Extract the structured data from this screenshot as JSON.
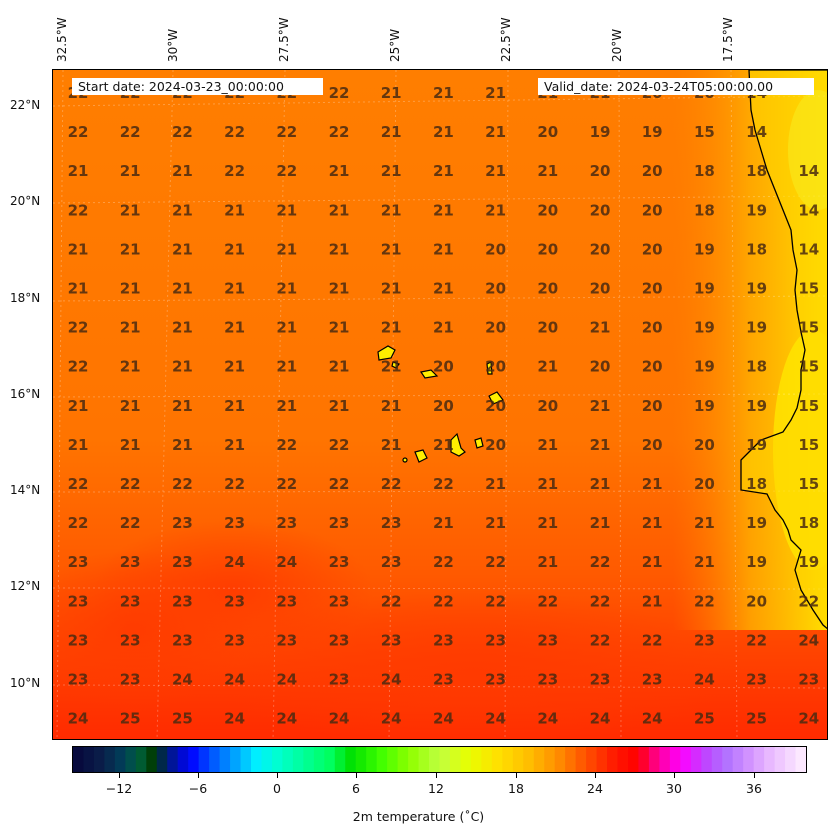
{
  "info": {
    "start_date": "Start date: 2024-03-23_00:00:00",
    "valid_date": "Valid_date: 2024-03-24T05:00:00.00"
  },
  "longitude_labels": [
    "32.5°W",
    "30°W",
    "27.5°W",
    "25°W",
    "22.5°W",
    "20°W",
    "17.5°W"
  ],
  "latitude_labels": [
    "22°N",
    "20°N",
    "18°N",
    "16°N",
    "14°N",
    "12°N",
    "10°N"
  ],
  "temperature_grid": [
    [
      "22",
      "22",
      "22",
      "22",
      "22",
      "22",
      "21",
      "21",
      "21",
      "21",
      "21",
      "20",
      "20",
      "14"
    ],
    [
      "22",
      "22",
      "22",
      "22",
      "22",
      "22",
      "21",
      "21",
      "21",
      "20",
      "19",
      "19",
      "15",
      "14"
    ],
    [
      "21",
      "21",
      "21",
      "22",
      "22",
      "21",
      "21",
      "21",
      "21",
      "21",
      "20",
      "20",
      "18",
      "18",
      "14"
    ],
    [
      "22",
      "21",
      "21",
      "21",
      "21",
      "21",
      "21",
      "21",
      "21",
      "20",
      "20",
      "20",
      "18",
      "19",
      "14"
    ],
    [
      "21",
      "21",
      "21",
      "21",
      "21",
      "21",
      "21",
      "21",
      "20",
      "20",
      "20",
      "20",
      "19",
      "18",
      "14"
    ],
    [
      "21",
      "21",
      "21",
      "21",
      "21",
      "21",
      "21",
      "21",
      "20",
      "20",
      "20",
      "20",
      "19",
      "19",
      "15"
    ],
    [
      "22",
      "21",
      "21",
      "21",
      "21",
      "21",
      "21",
      "21",
      "20",
      "20",
      "21",
      "20",
      "19",
      "19",
      "15"
    ],
    [
      "22",
      "21",
      "21",
      "21",
      "21",
      "21",
      "21",
      "20",
      "20",
      "21",
      "20",
      "20",
      "19",
      "18",
      "15"
    ],
    [
      "21",
      "21",
      "21",
      "21",
      "21",
      "21",
      "21",
      "20",
      "20",
      "20",
      "21",
      "20",
      "19",
      "19",
      "15"
    ],
    [
      "21",
      "21",
      "21",
      "21",
      "22",
      "22",
      "21",
      "21",
      "20",
      "21",
      "21",
      "20",
      "20",
      "19",
      "15"
    ],
    [
      "22",
      "22",
      "22",
      "22",
      "22",
      "22",
      "22",
      "22",
      "21",
      "21",
      "21",
      "21",
      "20",
      "18",
      "15"
    ],
    [
      "22",
      "22",
      "23",
      "23",
      "23",
      "23",
      "23",
      "21",
      "21",
      "21",
      "21",
      "21",
      "21",
      "19",
      "18"
    ],
    [
      "23",
      "23",
      "23",
      "24",
      "24",
      "23",
      "23",
      "22",
      "22",
      "21",
      "22",
      "21",
      "21",
      "19",
      "19"
    ],
    [
      "23",
      "23",
      "23",
      "23",
      "23",
      "23",
      "22",
      "22",
      "22",
      "22",
      "22",
      "21",
      "22",
      "20",
      "22"
    ],
    [
      "23",
      "23",
      "23",
      "23",
      "23",
      "23",
      "23",
      "23",
      "23",
      "23",
      "22",
      "22",
      "23",
      "22",
      "24"
    ],
    [
      "23",
      "23",
      "24",
      "24",
      "24",
      "23",
      "24",
      "23",
      "23",
      "23",
      "23",
      "23",
      "24",
      "23",
      "23"
    ],
    [
      "24",
      "25",
      "25",
      "24",
      "24",
      "24",
      "24",
      "24",
      "24",
      "24",
      "24",
      "24",
      "25",
      "25",
      "24"
    ]
  ],
  "colorbar": {
    "tick_labels": [
      "−12",
      "−6",
      "0",
      "6",
      "12",
      "18",
      "24",
      "30",
      "36"
    ],
    "title": "2m temperature (˚C)"
  }
}
